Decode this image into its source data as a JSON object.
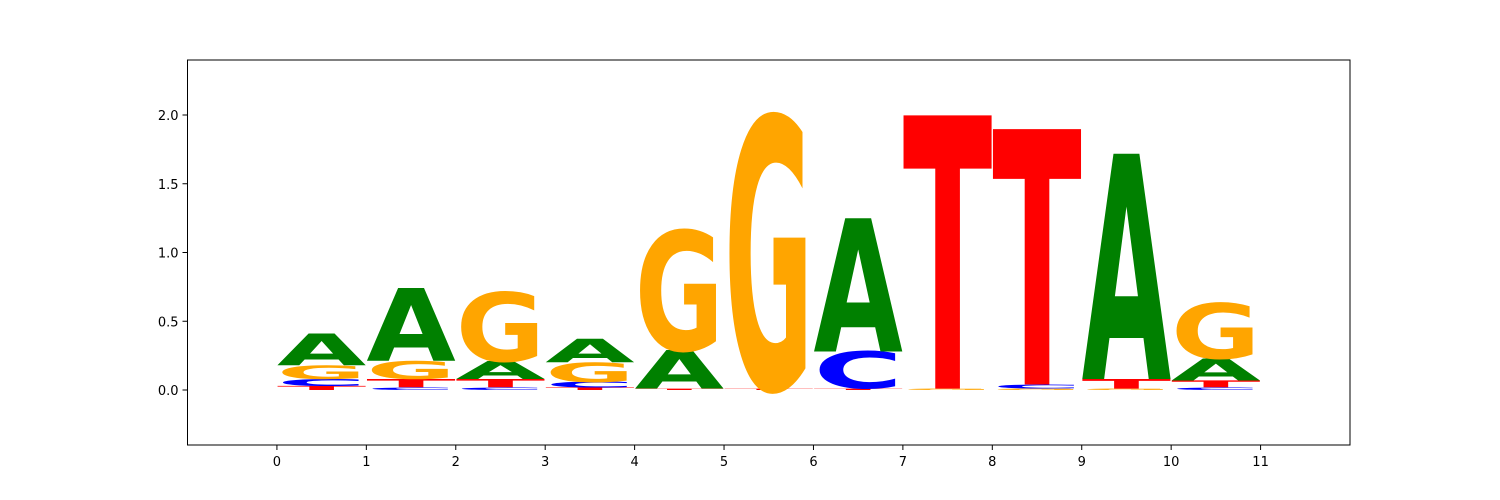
{
  "chart_data": {
    "type": "sequence-logo",
    "title": "",
    "xlabel": "",
    "ylabel": "",
    "xlim": [
      -1,
      12
    ],
    "ylim": [
      -0.4,
      2.4
    ],
    "x_ticks": [
      "0",
      "1",
      "2",
      "3",
      "4",
      "5",
      "6",
      "7",
      "8",
      "9",
      "10",
      "11"
    ],
    "y_ticks": [
      "0.0",
      "0.5",
      "1.0",
      "1.5",
      "2.0"
    ],
    "colors": {
      "A": "#008000",
      "C": "#0000ff",
      "G": "#ffa500",
      "T": "#ff0000"
    },
    "positions": [
      {
        "x": 0,
        "stack": [
          {
            "letter": "T",
            "height": 0.03
          },
          {
            "letter": "C",
            "height": 0.05
          },
          {
            "letter": "G",
            "height": 0.1
          },
          {
            "letter": "A",
            "height": 0.23
          }
        ]
      },
      {
        "x": 1,
        "stack": [
          {
            "letter": "C",
            "height": 0.02
          },
          {
            "letter": "T",
            "height": 0.06
          },
          {
            "letter": "G",
            "height": 0.13
          },
          {
            "letter": "A",
            "height": 0.53
          }
        ]
      },
      {
        "x": 2,
        "stack": [
          {
            "letter": "C",
            "height": 0.02
          },
          {
            "letter": "T",
            "height": 0.06
          },
          {
            "letter": "A",
            "height": 0.13
          },
          {
            "letter": "G",
            "height": 0.5
          }
        ]
      },
      {
        "x": 3,
        "stack": [
          {
            "letter": "T",
            "height": 0.02
          },
          {
            "letter": "C",
            "height": 0.04
          },
          {
            "letter": "G",
            "height": 0.14
          },
          {
            "letter": "A",
            "height": 0.17
          }
        ]
      },
      {
        "x": 4,
        "stack": [
          {
            "letter": "T",
            "height": 0.01
          },
          {
            "letter": "A",
            "height": 0.28
          },
          {
            "letter": "G",
            "height": 0.87
          }
        ]
      },
      {
        "x": 5,
        "stack": [
          {
            "letter": "T",
            "height": 0.01
          },
          {
            "letter": "G",
            "height": 1.98
          }
        ]
      },
      {
        "x": 6,
        "stack": [
          {
            "letter": "T",
            "height": 0.01
          },
          {
            "letter": "C",
            "height": 0.27
          },
          {
            "letter": "A",
            "height": 0.97
          }
        ]
      },
      {
        "x": 7,
        "stack": [
          {
            "letter": "G",
            "height": 0.01
          },
          {
            "letter": "T",
            "height": 1.99
          }
        ]
      },
      {
        "x": 8,
        "stack": [
          {
            "letter": "G",
            "height": 0.01
          },
          {
            "letter": "C",
            "height": 0.03
          },
          {
            "letter": "T",
            "height": 1.86
          }
        ]
      },
      {
        "x": 9,
        "stack": [
          {
            "letter": "G",
            "height": 0.01
          },
          {
            "letter": "T",
            "height": 0.07
          },
          {
            "letter": "A",
            "height": 1.64
          }
        ]
      },
      {
        "x": 10,
        "stack": [
          {
            "letter": "C",
            "height": 0.02
          },
          {
            "letter": "T",
            "height": 0.05
          },
          {
            "letter": "A",
            "height": 0.16
          },
          {
            "letter": "G",
            "height": 0.4
          }
        ]
      }
    ]
  }
}
